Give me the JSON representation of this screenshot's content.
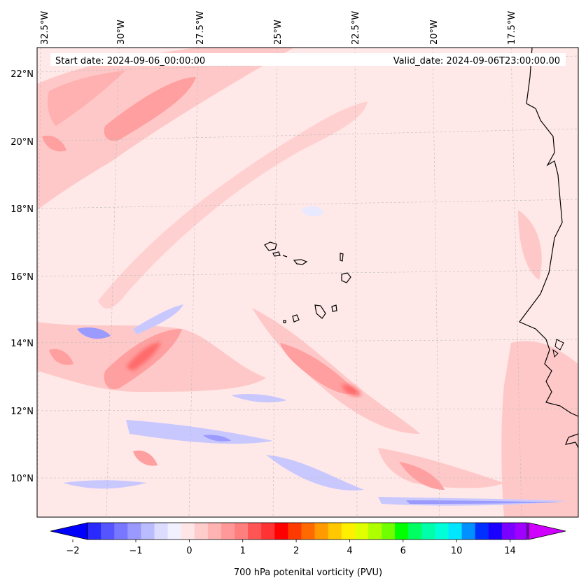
{
  "map": {
    "header": {
      "start_label": "Start date: 2024-09-06_00:00:00",
      "valid_label": "Valid_date: 2024-09-06T23:00:00.00"
    },
    "lon_labels": [
      "32.5°W",
      "30°W",
      "27.5°W",
      "25°W",
      "22.5°W",
      "20°W",
      "17.5°W"
    ],
    "lat_labels": [
      "22°N",
      "20°N",
      "18°N",
      "16°N",
      "14°N",
      "12°N",
      "10°N"
    ],
    "colorbar": {
      "tick_labels": [
        "−2",
        "−1",
        "0",
        "1",
        "2",
        "4",
        "6",
        "10",
        "14"
      ],
      "title": "700 hPa potenital vorticity (PVU)",
      "colors": [
        "#0000ff",
        "#2a2aff",
        "#5555ff",
        "#7777ff",
        "#9999ff",
        "#bbbbff",
        "#dcdcff",
        "#f0f0ff",
        "#ffe6e6",
        "#ffcccc",
        "#ffb3b3",
        "#ff9999",
        "#ff7f7f",
        "#ff5555",
        "#ff3333",
        "#ff0000",
        "#ff3a00",
        "#ff6a00",
        "#ff9a00",
        "#ffc800",
        "#ffef00",
        "#e0ff00",
        "#b0ff00",
        "#70ff00",
        "#00ff00",
        "#00ff60",
        "#00ffa8",
        "#00ffd8",
        "#00e6ff",
        "#0090ff",
        "#0030ff",
        "#1a00ff",
        "#7a00ff",
        "#a000ff",
        "#d000ff"
      ]
    },
    "field_colors": {
      "background": "#ffe8e8",
      "light_red": "#ffc8c8",
      "mid_red": "#ff9f9f",
      "strong_red": "#ff6a6a",
      "light_blue": "#e8e8ff",
      "mid_blue": "#c8c8ff",
      "strong_blue": "#9a9aff"
    }
  }
}
